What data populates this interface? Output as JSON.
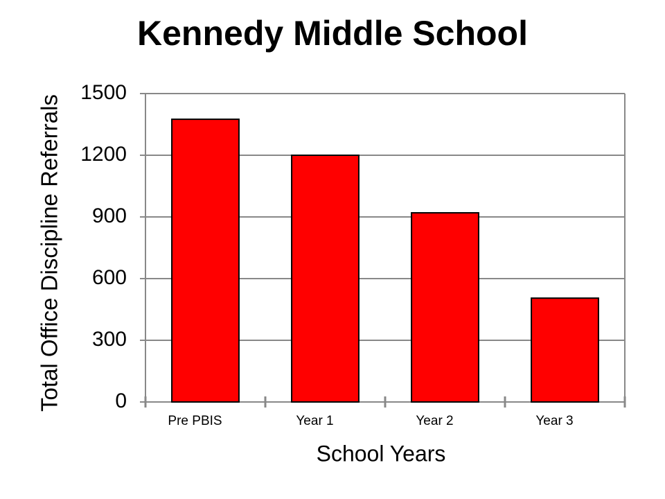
{
  "chart_data": {
    "type": "bar",
    "title": "Kennedy Middle School",
    "x_label": "School Years",
    "y_label": "Total Office Discipline Referrals",
    "categories": [
      "Pre PBIS",
      "Year 1",
      "Year 2",
      "Year 3"
    ],
    "values": [
      1375,
      1200,
      920,
      505
    ],
    "color": "#ff0000",
    "ylim": [
      0,
      1500
    ],
    "yticks": [
      0,
      300,
      600,
      900,
      1200,
      1500
    ],
    "grid": true
  }
}
